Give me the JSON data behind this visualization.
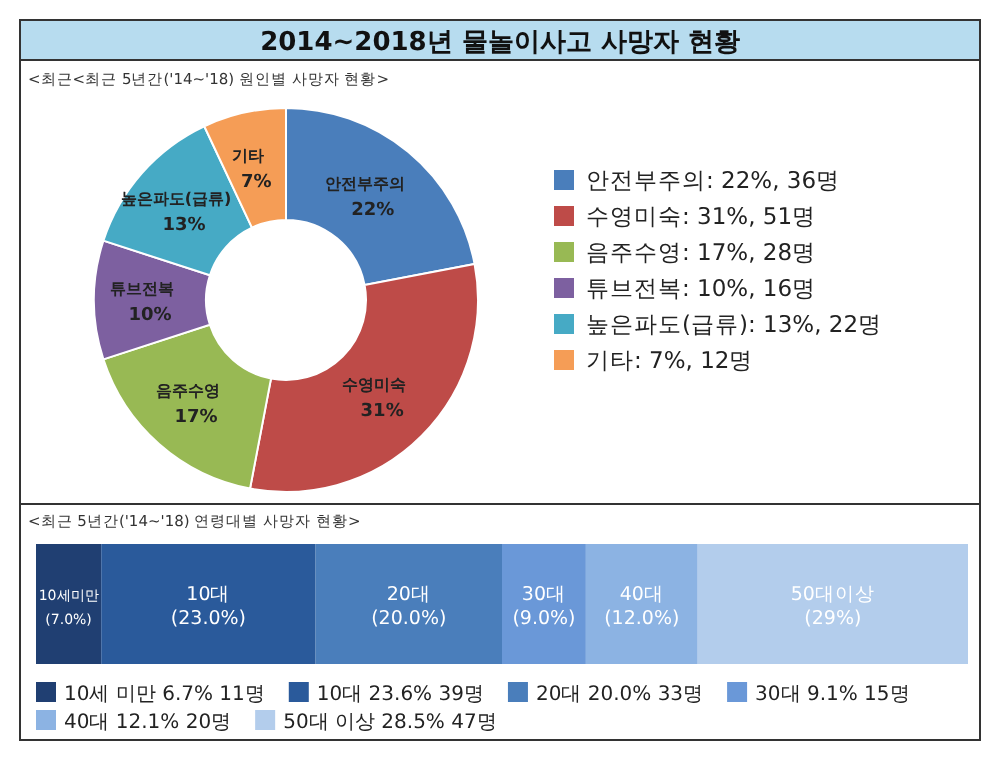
{
  "chart_data": [
    {
      "type": "donut",
      "title": "2014~2018년 물놀이사고 사망자 현황",
      "subtitle": "<최근<최근 5년간('14~'18) 원인별 사망자 현황>",
      "categories": [
        "안전부주의",
        "수영미숙",
        "음주수영",
        "튜브전복",
        "높은파도(급류)",
        "기타"
      ],
      "values": [
        22,
        31,
        17,
        10,
        13,
        7
      ],
      "value_labels": [
        "22%",
        "31%",
        "17%",
        "10%",
        "13%",
        "7%"
      ],
      "colors": [
        "#4a7ebb",
        "#be4b48",
        "#98b954",
        "#7d60a0",
        "#46aac5",
        "#f59d56"
      ],
      "annotations": [
        "안전부주의: 22%, 36명",
        "수영미숙: 31%, 51명",
        "음주수영: 17%, 28명",
        "튜브전복: 10%, 16명",
        "높은파도(급류): 13%, 22명",
        "기타: 7%, 12명"
      ]
    },
    {
      "type": "bar",
      "title": "<최근 5년간('14~'18) 연령대별 사망자 현황>",
      "orientation": "horizontal",
      "stacked": true,
      "legend": "bottom",
      "categories": [
        null
      ],
      "series": [
        {
          "name": "10세 미만 6.7% 11명",
          "color": "#203f72",
          "values": [
            7.0
          ],
          "value_labels": [
            "10세미만 (7.0%)"
          ]
        },
        {
          "name": "10대 23.6% 39명",
          "color": "#2a5a9b",
          "values": [
            23.0
          ],
          "value_labels": [
            "10대 (23.0%)"
          ]
        },
        {
          "name": "20대 20.0% 33명",
          "color": "#4a7ebb",
          "values": [
            20.0
          ],
          "value_labels": [
            "20대 (20.0%)"
          ]
        },
        {
          "name": "30대 9.1% 15명",
          "color": "#6a98d8",
          "values": [
            9.0
          ],
          "value_labels": [
            "30대 (9.0%)"
          ]
        },
        {
          "name": "40대 12.1% 20명",
          "color": "#8cb3e3",
          "values": [
            12.0
          ],
          "value_labels": [
            "40대 (12.0%)"
          ]
        },
        {
          "name": "50대 이상 28.5% 47명",
          "color": "#b3cdec",
          "values": [
            29
          ],
          "value_labels": [
            "50대이상 (29%)"
          ]
        }
      ]
    }
  ]
}
